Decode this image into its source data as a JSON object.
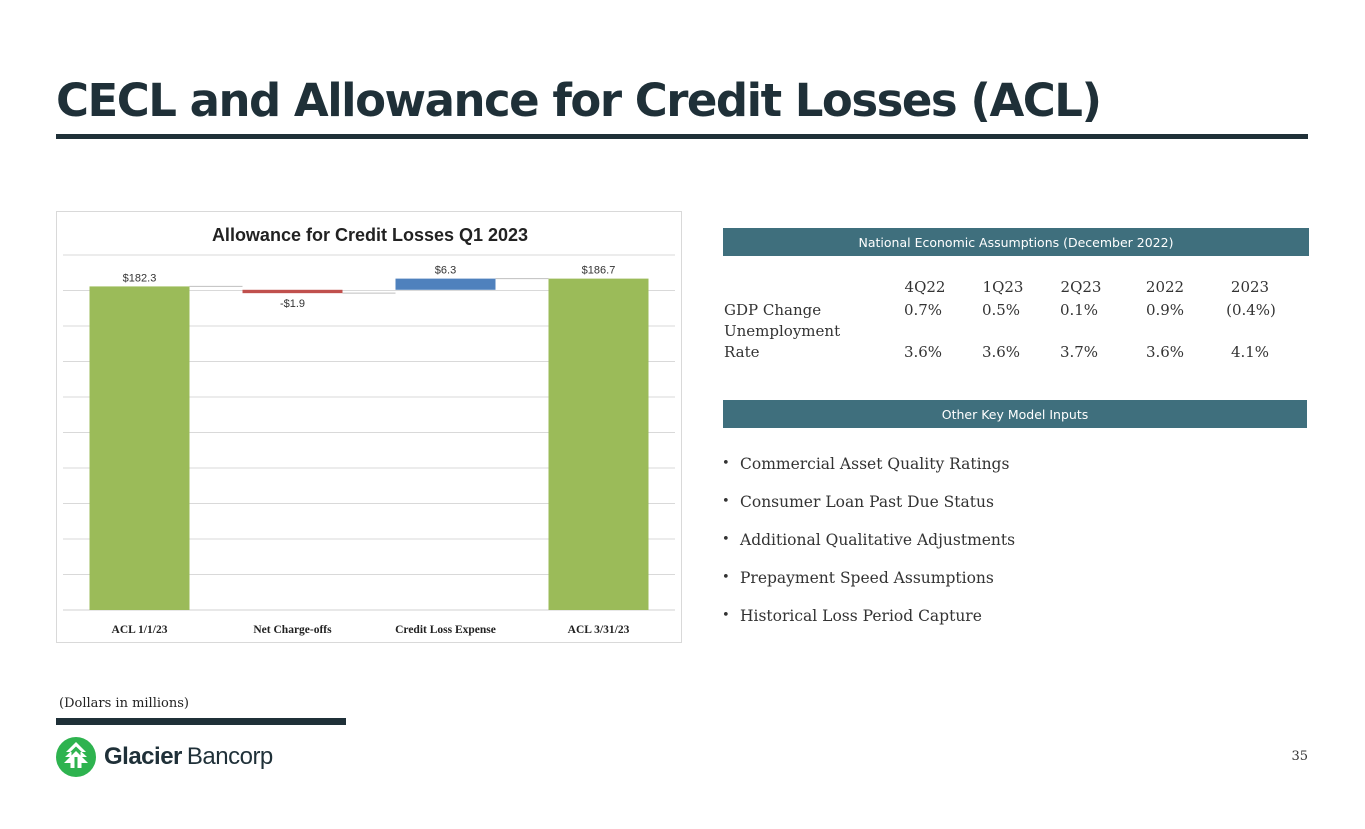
{
  "slide": {
    "title": "CECL and Allowance for Credit Losses (ACL)",
    "footnote": "(Dollars in millions)",
    "page_number": "35",
    "logo": {
      "name_bold": "Glacier",
      "name_light": "Bancorp",
      "icon": "glacier-mountain-icon",
      "color": "#2eb34f"
    }
  },
  "chart_data": {
    "type": "bar",
    "title": "Allowance for Credit Losses Q1 2023",
    "categories": [
      "ACL 1/1/23",
      "Net Charge-offs",
      "Credit Loss Expense",
      "ACL 3/31/23"
    ],
    "values": [
      182.3,
      -1.9,
      6.3,
      186.7
    ],
    "data_labels": [
      "$182.3",
      "-$1.9",
      "$6.3",
      "$186.7"
    ],
    "waterfall_base": [
      0,
      180.4,
      180.4,
      0
    ],
    "colors": [
      "#9bbb59",
      "#c0504d",
      "#4f81bd",
      "#9bbb59"
    ],
    "ylim": [
      0,
      200
    ],
    "grid": true
  },
  "economic_assumptions": {
    "header": "National Economic Assumptions (December 2022)",
    "columns": [
      "4Q22",
      "1Q23",
      "2Q23",
      "2022",
      "2023"
    ],
    "rows": [
      {
        "label": "GDP Change",
        "values": [
          "0.7%",
          "0.5%",
          "0.1%",
          "0.9%",
          "(0.4%)"
        ]
      },
      {
        "label_line1": "Unemployment",
        "label_line2": "Rate",
        "values": [
          "3.6%",
          "3.6%",
          "3.7%",
          "3.6%",
          "4.1%"
        ]
      }
    ]
  },
  "model_inputs": {
    "header": "Other Key Model Inputs",
    "bullet": "•",
    "items": [
      "Commercial Asset Quality Ratings",
      "Consumer Loan Past Due Status",
      "Additional Qualitative Adjustments",
      "Prepayment Speed Assumptions",
      "Historical Loss Period Capture"
    ]
  }
}
